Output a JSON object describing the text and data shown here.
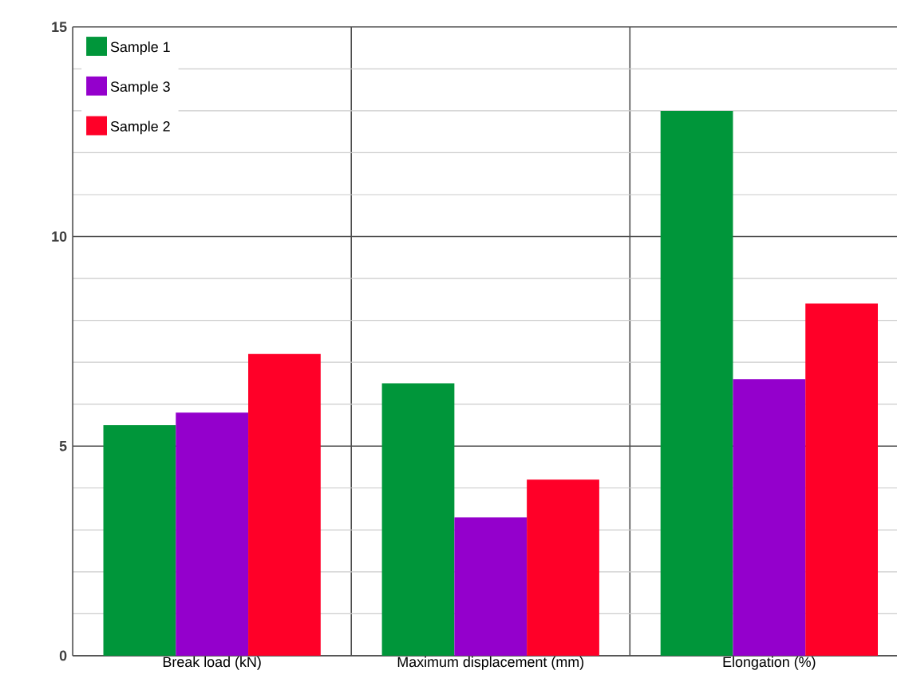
{
  "chart_data": {
    "type": "bar",
    "categories": [
      "Break load (kN)",
      "Maximum displacement (mm)",
      "Elongation (%)"
    ],
    "series": [
      {
        "name": "Sample 1",
        "color": "#00963a",
        "values": [
          5.5,
          6.5,
          13.0
        ]
      },
      {
        "name": "Sample 3",
        "color": "#9400cc",
        "values": [
          5.8,
          3.3,
          6.6
        ]
      },
      {
        "name": "Sample 2",
        "color": "#ff0028",
        "values": [
          7.2,
          4.2,
          8.4
        ]
      }
    ],
    "ylim": [
      0,
      15
    ],
    "yticks": [
      0,
      5,
      10,
      15
    ],
    "grid": true,
    "legend": "top left"
  }
}
